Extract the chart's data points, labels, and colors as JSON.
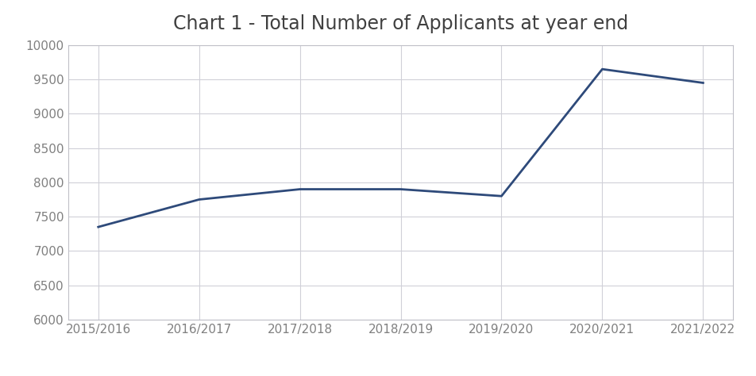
{
  "title": "Chart 1 - Total Number of Applicants at year end",
  "categories": [
    "2015/2016",
    "2016/2017",
    "2017/2018",
    "2018/2019",
    "2019/2020",
    "2020/2021",
    "2021/2022"
  ],
  "values": [
    7350,
    7750,
    7900,
    7900,
    7800,
    9650,
    9450
  ],
  "line_color": "#2E4A7A",
  "line_width": 2.0,
  "ylim": [
    6000,
    10000
  ],
  "yticks": [
    6000,
    6500,
    7000,
    7500,
    8000,
    8500,
    9000,
    9500,
    10000
  ],
  "background_color": "#ffffff",
  "plot_bg_color": "#ffffff",
  "grid_color": "#d0d0d8",
  "title_fontsize": 17,
  "tick_fontsize": 11,
  "title_color": "#404040",
  "tick_color": "#808080",
  "spine_color": "#c0c0c8"
}
